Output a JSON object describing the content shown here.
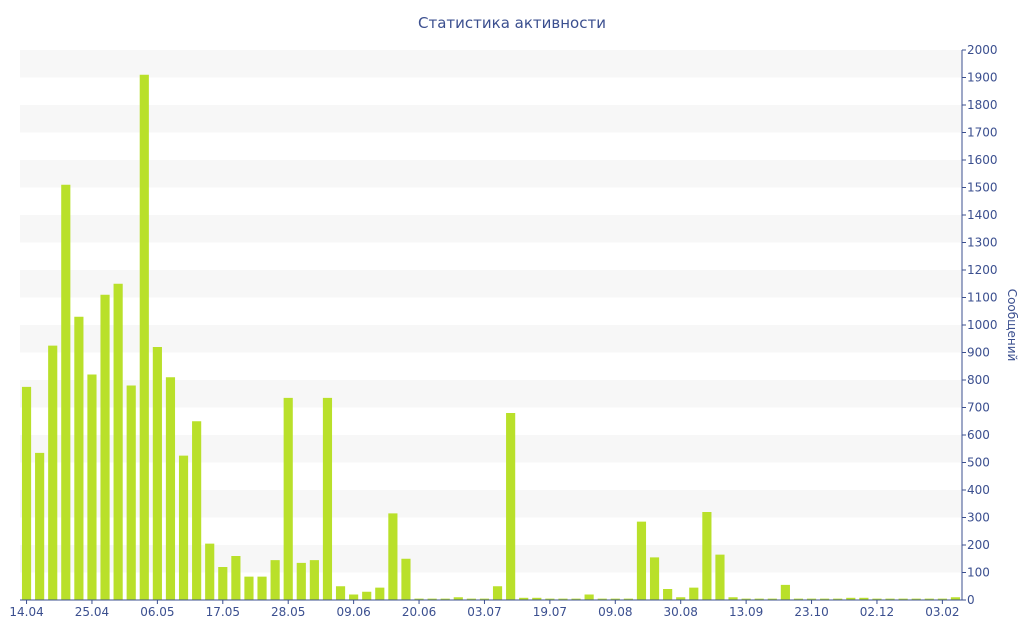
{
  "chart_data": {
    "type": "bar",
    "title": "Статистика активности",
    "xlabel": "",
    "ylabel": "Сообщений",
    "ylim": [
      0,
      2000
    ],
    "yticks": [
      0,
      100,
      200,
      300,
      400,
      500,
      600,
      700,
      800,
      900,
      1000,
      1100,
      1200,
      1300,
      1400,
      1500,
      1600,
      1700,
      1800,
      1900,
      2000
    ],
    "y_axis_side": "right",
    "grid": "alternating horizontal bands",
    "bar_color": "#b9e02a",
    "band_color": "#f7f7f7",
    "text_color": "#3b4f8f",
    "x_tick_labels": [
      {
        "index": 0,
        "label": "14.04"
      },
      {
        "index": 5,
        "label": "25.04"
      },
      {
        "index": 10,
        "label": "06.05"
      },
      {
        "index": 15,
        "label": "17.05"
      },
      {
        "index": 20,
        "label": "28.05"
      },
      {
        "index": 25,
        "label": "09.06"
      },
      {
        "index": 30,
        "label": "20.06"
      },
      {
        "index": 35,
        "label": "03.07"
      },
      {
        "index": 40,
        "label": "19.07"
      },
      {
        "index": 45,
        "label": "09.08"
      },
      {
        "index": 50,
        "label": "30.08"
      },
      {
        "index": 55,
        "label": "13.09"
      },
      {
        "index": 60,
        "label": "23.10"
      },
      {
        "index": 65,
        "label": "02.12"
      },
      {
        "index": 70,
        "label": "03.02"
      }
    ],
    "values": [
      775,
      535,
      925,
      1510,
      1030,
      820,
      1110,
      1150,
      780,
      1910,
      920,
      810,
      525,
      650,
      205,
      120,
      160,
      85,
      85,
      145,
      735,
      135,
      145,
      735,
      50,
      20,
      30,
      45,
      315,
      150,
      5,
      5,
      5,
      10,
      5,
      5,
      50,
      680,
      8,
      8,
      5,
      5,
      5,
      20,
      5,
      5,
      5,
      285,
      155,
      40,
      10,
      45,
      320,
      165,
      10,
      5,
      5,
      5,
      55,
      5,
      5,
      5,
      5,
      8,
      8,
      5,
      5,
      5,
      5,
      5,
      5,
      10
    ]
  }
}
